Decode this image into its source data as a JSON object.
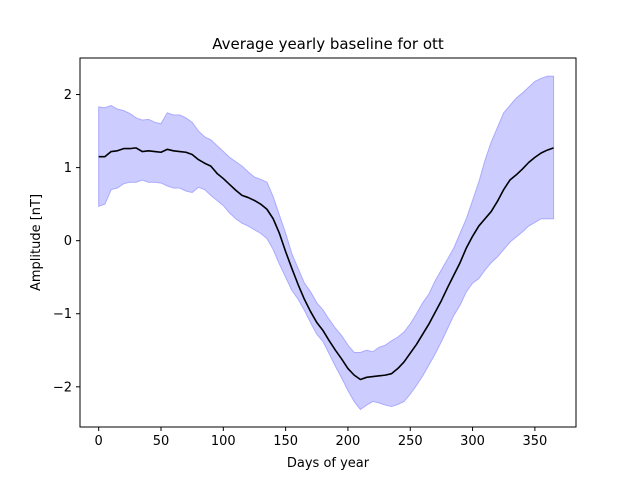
{
  "chart_data": {
    "type": "area",
    "title": "Average yearly baseline for ott",
    "xlabel": "Days of year",
    "ylabel": "Amplitude [nT]",
    "xlim": [
      -15,
      383
    ],
    "ylim": [
      -2.55,
      2.5
    ],
    "xticks": [
      0,
      50,
      100,
      150,
      200,
      250,
      300,
      350
    ],
    "yticks": [
      -2,
      -1,
      0,
      1,
      2
    ],
    "grid": false,
    "series": [
      {
        "role": "mean",
        "color": "#000000",
        "x": [
          0,
          5,
          10,
          15,
          20,
          25,
          30,
          35,
          40,
          45,
          50,
          55,
          60,
          65,
          70,
          75,
          80,
          85,
          90,
          95,
          100,
          105,
          110,
          115,
          120,
          125,
          130,
          135,
          140,
          145,
          150,
          155,
          160,
          165,
          170,
          175,
          180,
          185,
          190,
          195,
          200,
          205,
          210,
          215,
          220,
          225,
          230,
          235,
          240,
          245,
          250,
          255,
          260,
          265,
          270,
          275,
          280,
          285,
          290,
          295,
          300,
          305,
          310,
          315,
          320,
          325,
          330,
          335,
          340,
          345,
          350,
          355,
          360,
          365
        ],
        "y": [
          1.15,
          1.15,
          1.22,
          1.23,
          1.26,
          1.26,
          1.27,
          1.22,
          1.23,
          1.22,
          1.21,
          1.25,
          1.23,
          1.22,
          1.21,
          1.18,
          1.11,
          1.06,
          1.02,
          0.92,
          0.85,
          0.77,
          0.69,
          0.62,
          0.59,
          0.55,
          0.5,
          0.43,
          0.3,
          0.1,
          -0.15,
          -0.38,
          -0.6,
          -0.8,
          -0.97,
          -1.12,
          -1.23,
          -1.37,
          -1.5,
          -1.62,
          -1.75,
          -1.84,
          -1.9,
          -1.87,
          -1.86,
          -1.85,
          -1.84,
          -1.82,
          -1.75,
          -1.66,
          -1.54,
          -1.42,
          -1.28,
          -1.14,
          -0.98,
          -0.82,
          -0.64,
          -0.47,
          -0.3,
          -0.1,
          0.06,
          0.2,
          0.3,
          0.4,
          0.54,
          0.7,
          0.83,
          0.9,
          0.98,
          1.07,
          1.14,
          1.2,
          1.24,
          1.27
        ]
      },
      {
        "role": "band-upper",
        "color": "#ccccff",
        "x": [
          0,
          5,
          10,
          15,
          20,
          25,
          30,
          35,
          40,
          45,
          50,
          55,
          60,
          65,
          70,
          75,
          80,
          85,
          90,
          95,
          100,
          105,
          110,
          115,
          120,
          125,
          130,
          135,
          140,
          145,
          150,
          155,
          160,
          165,
          170,
          175,
          180,
          185,
          190,
          195,
          200,
          205,
          210,
          215,
          220,
          225,
          230,
          235,
          240,
          245,
          250,
          255,
          260,
          265,
          270,
          275,
          280,
          285,
          290,
          295,
          300,
          305,
          310,
          315,
          320,
          325,
          330,
          335,
          340,
          345,
          350,
          355,
          360,
          365
        ],
        "y": [
          1.83,
          1.82,
          1.85,
          1.8,
          1.78,
          1.74,
          1.68,
          1.65,
          1.66,
          1.62,
          1.6,
          1.75,
          1.72,
          1.72,
          1.68,
          1.62,
          1.5,
          1.42,
          1.38,
          1.3,
          1.22,
          1.14,
          1.08,
          1.02,
          0.94,
          0.87,
          0.84,
          0.8,
          0.6,
          0.35,
          0.1,
          -0.18,
          -0.38,
          -0.58,
          -0.7,
          -0.85,
          -0.95,
          -1.08,
          -1.2,
          -1.3,
          -1.43,
          -1.53,
          -1.53,
          -1.5,
          -1.52,
          -1.46,
          -1.43,
          -1.37,
          -1.32,
          -1.25,
          -1.14,
          -1.0,
          -0.85,
          -0.73,
          -0.55,
          -0.4,
          -0.25,
          -0.1,
          0.1,
          0.3,
          0.55,
          0.8,
          1.1,
          1.35,
          1.55,
          1.75,
          1.85,
          1.95,
          2.02,
          2.1,
          2.18,
          2.22,
          2.25,
          2.25
        ]
      },
      {
        "role": "band-lower",
        "color": "#ccccff",
        "x": [
          0,
          5,
          10,
          15,
          20,
          25,
          30,
          35,
          40,
          45,
          50,
          55,
          60,
          65,
          70,
          75,
          80,
          85,
          90,
          95,
          100,
          105,
          110,
          115,
          120,
          125,
          130,
          135,
          140,
          145,
          150,
          155,
          160,
          165,
          170,
          175,
          180,
          185,
          190,
          195,
          200,
          205,
          210,
          215,
          220,
          225,
          230,
          235,
          240,
          245,
          250,
          255,
          260,
          265,
          270,
          275,
          280,
          285,
          290,
          295,
          300,
          305,
          310,
          315,
          320,
          325,
          330,
          335,
          340,
          345,
          350,
          355,
          360,
          365
        ],
        "y": [
          0.47,
          0.5,
          0.7,
          0.72,
          0.78,
          0.8,
          0.8,
          0.83,
          0.8,
          0.8,
          0.79,
          0.75,
          0.72,
          0.72,
          0.68,
          0.66,
          0.73,
          0.7,
          0.62,
          0.55,
          0.48,
          0.38,
          0.3,
          0.24,
          0.2,
          0.15,
          0.1,
          0.03,
          -0.12,
          -0.32,
          -0.5,
          -0.68,
          -0.8,
          -0.95,
          -1.12,
          -1.28,
          -1.38,
          -1.55,
          -1.72,
          -1.88,
          -2.05,
          -2.2,
          -2.31,
          -2.25,
          -2.2,
          -2.22,
          -2.25,
          -2.27,
          -2.24,
          -2.2,
          -2.1,
          -1.98,
          -1.85,
          -1.7,
          -1.55,
          -1.38,
          -1.2,
          -1.02,
          -0.88,
          -0.7,
          -0.58,
          -0.52,
          -0.4,
          -0.3,
          -0.22,
          -0.12,
          -0.02,
          0.05,
          0.12,
          0.2,
          0.25,
          0.3,
          0.3,
          0.3
        ]
      }
    ]
  }
}
